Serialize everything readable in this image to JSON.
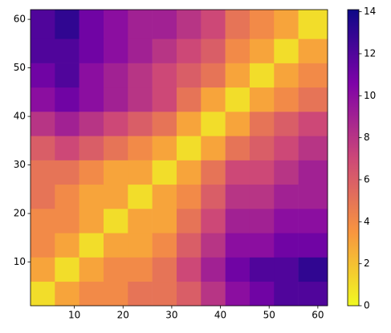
{
  "chart_data": {
    "type": "heatmap",
    "colormap": "plasma_r",
    "xbins": [
      1,
      6,
      11,
      16,
      21,
      26,
      31,
      36,
      41,
      46,
      51,
      56,
      62
    ],
    "ybins": [
      1,
      6,
      11,
      16,
      21,
      26,
      31,
      36,
      41,
      46,
      51,
      56,
      62
    ],
    "values": [
      [
        1,
        3,
        4,
        4,
        5,
        5,
        6,
        8,
        10,
        11,
        12,
        12
      ],
      [
        3,
        1,
        3,
        4,
        4,
        5,
        7,
        9,
        11,
        12,
        12,
        13
      ],
      [
        4,
        3,
        1,
        3,
        3,
        4,
        6,
        8,
        10,
        10,
        11,
        11
      ],
      [
        4,
        4,
        3,
        1,
        3,
        3,
        5,
        7,
        9,
        9,
        10,
        10
      ],
      [
        5,
        4,
        3,
        3,
        1,
        3,
        4,
        6,
        8,
        8,
        9,
        9
      ],
      [
        5,
        5,
        4,
        3,
        3,
        1,
        3,
        5,
        7,
        7,
        8,
        9
      ],
      [
        6,
        7,
        6,
        5,
        4,
        3,
        1,
        3,
        5,
        6,
        7,
        8
      ],
      [
        8,
        9,
        8,
        7,
        6,
        5,
        3,
        1,
        3,
        5,
        6,
        7
      ],
      [
        10,
        11,
        10,
        9,
        8,
        7,
        5,
        3,
        1,
        3,
        4,
        5
      ],
      [
        11,
        12,
        10,
        9,
        8,
        7,
        6,
        5,
        3,
        1,
        3,
        4
      ],
      [
        12,
        12,
        11,
        10,
        9,
        8,
        7,
        6,
        4,
        3,
        1,
        3
      ],
      [
        12,
        13,
        11,
        10,
        9,
        9,
        8,
        7,
        5,
        4,
        3,
        1
      ]
    ],
    "xlim": [
      1,
      62
    ],
    "ylim": [
      1,
      62
    ],
    "xticks": [
      10,
      20,
      30,
      40,
      50,
      60
    ],
    "yticks": [
      10,
      20,
      30,
      40,
      50,
      60
    ],
    "clim": [
      0,
      14.1
    ],
    "cticks": [
      0,
      2,
      4,
      6,
      8,
      10,
      12,
      14
    ]
  }
}
